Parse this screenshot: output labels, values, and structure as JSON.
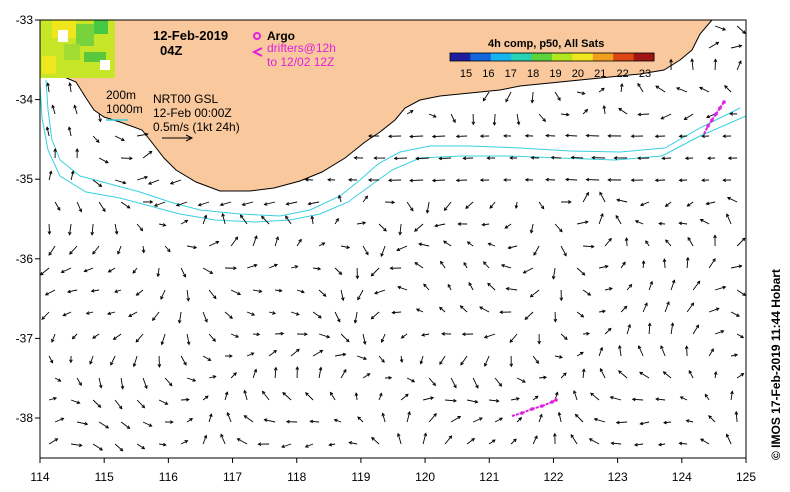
{
  "title": {
    "date": "12-Feb-2019",
    "time": "04Z"
  },
  "legend": {
    "argo_label": "Argo",
    "drifters_line1": "drifters@12h",
    "drifters_line2": "to 12/02 12Z",
    "argo_color": "#e020e0",
    "depth_200": "200m",
    "depth_1000": "1000m",
    "contour_color": "#38d0e0",
    "product_line1": "NRT00 GSL",
    "product_line2": "12-Feb 00:00Z",
    "vector_scale": "0.5m/s (1kt 24h)"
  },
  "colorbar": {
    "title": "4h comp, p50, All Sats",
    "ticks": [
      "15",
      "16",
      "17",
      "18",
      "19",
      "20",
      "21",
      "22",
      "23"
    ],
    "colors": [
      "#1e1ea0",
      "#1466dc",
      "#18b4f0",
      "#26d2b4",
      "#5cd23c",
      "#b4e61e",
      "#f0e61e",
      "#f0a01e",
      "#dc4614",
      "#a01414"
    ]
  },
  "axes": {
    "x_ticks": [
      "114",
      "115",
      "116",
      "117",
      "118",
      "119",
      "120",
      "121",
      "122",
      "123",
      "124",
      "125"
    ],
    "y_ticks": [
      "-33",
      "-34",
      "-35",
      "-36",
      "-37",
      "-38"
    ]
  },
  "credit": "© IMOS 17-Feb-2019 11:44 Hobart",
  "colors": {
    "land": "#f9c99d",
    "frame": "#000000",
    "vector": "#000000"
  }
}
